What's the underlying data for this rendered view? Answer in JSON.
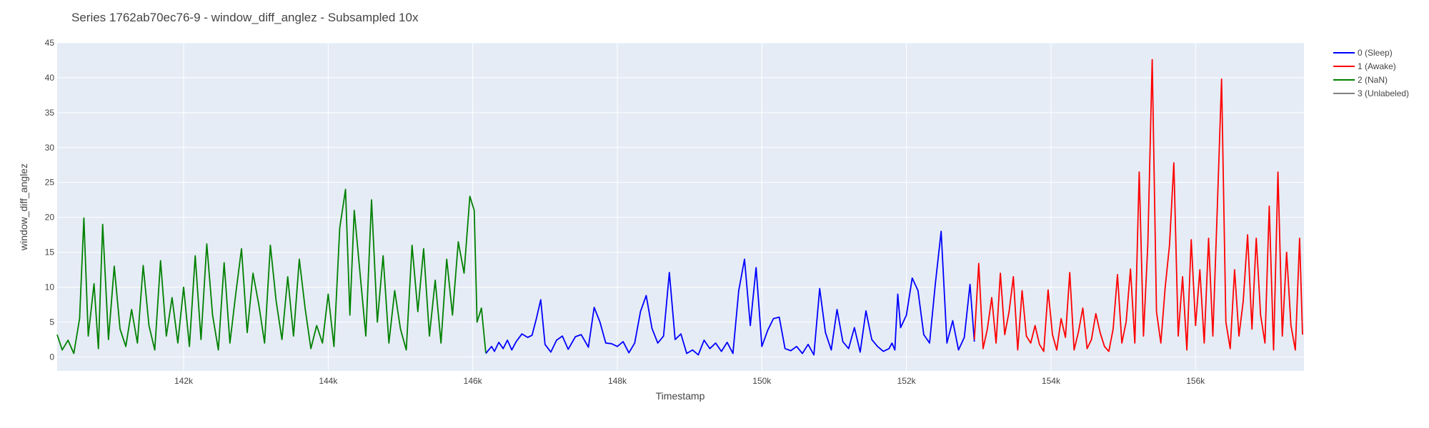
{
  "chart_data": {
    "type": "line",
    "title": "Series 1762ab70ec76-9 - window_diff_anglez - Subsampled 10x",
    "xlabel": "Timestamp",
    "ylabel": "window_diff_anglez",
    "xlim": [
      140250,
      157500
    ],
    "ylim": [
      -2,
      45
    ],
    "x_ticks": [
      142000,
      144000,
      146000,
      148000,
      150000,
      152000,
      154000,
      156000
    ],
    "x_tick_labels": [
      "142k",
      "144k",
      "146k",
      "148k",
      "150k",
      "152k",
      "154k",
      "156k"
    ],
    "y_ticks": [
      0,
      5,
      10,
      15,
      20,
      25,
      30,
      35,
      40,
      45
    ],
    "grid": true,
    "plot_background": "#e5ecf6",
    "legend_position": "top-right",
    "series": [
      {
        "name": "0 (Sleep)",
        "color": "#0000ff",
        "x": [
          146180,
          146260,
          146300,
          146360,
          146420,
          146480,
          146540,
          146600,
          146680,
          146760,
          146820,
          146880,
          146940,
          147000,
          147080,
          147160,
          147240,
          147320,
          147420,
          147500,
          147600,
          147680,
          147760,
          147840,
          147920,
          148000,
          148080,
          148160,
          148240,
          148320,
          148400,
          148480,
          148560,
          148640,
          148720,
          148800,
          148880,
          148960,
          149040,
          149120,
          149200,
          149280,
          149360,
          149440,
          149520,
          149600,
          149680,
          149760,
          149840,
          149920,
          150000,
          150080,
          150160,
          150240,
          150320,
          150400,
          150480,
          150560,
          150640,
          150720,
          150800,
          150880,
          150960,
          151040,
          151120,
          151200,
          151280,
          151360,
          151440,
          151520,
          151600,
          151680,
          151760,
          151800,
          151840,
          151880,
          151920,
          152000,
          152080,
          152160,
          152240,
          152320,
          152400,
          152480,
          152560,
          152640,
          152720,
          152800,
          152880,
          152940
        ],
        "values": [
          0.5,
          1.5,
          0.8,
          2.1,
          1.2,
          2.4,
          1.0,
          2.2,
          3.3,
          2.8,
          3.1,
          5.5,
          8.2,
          1.8,
          0.7,
          2.4,
          3.0,
          1.1,
          2.9,
          3.2,
          1.4,
          7.1,
          5.0,
          2.0,
          1.9,
          1.5,
          2.2,
          0.6,
          2.0,
          6.5,
          8.8,
          4.1,
          2.0,
          3.0,
          12.1,
          2.5,
          3.3,
          0.5,
          1.0,
          0.3,
          2.4,
          1.2,
          2.0,
          0.8,
          2.1,
          0.5,
          9.5,
          14.0,
          4.5,
          12.8,
          1.5,
          3.8,
          5.5,
          5.7,
          1.2,
          0.9,
          1.5,
          0.5,
          1.8,
          0.3,
          9.8,
          3.5,
          1.0,
          6.8,
          2.2,
          1.2,
          4.2,
          0.7,
          6.6,
          2.5,
          1.5,
          0.8,
          1.2,
          2.0,
          1.0,
          9.0,
          4.2,
          6.0,
          11.3,
          9.5,
          3.2,
          2.0,
          10.5,
          18.0,
          2.0,
          5.2,
          1.0,
          2.8,
          10.4,
          2.2
        ]
      },
      {
        "name": "1 (Awake)",
        "color": "#ff0000",
        "x": [
          152940,
          153000,
          153060,
          153120,
          153180,
          153240,
          153300,
          153360,
          153420,
          153480,
          153540,
          153600,
          153660,
          153720,
          153780,
          153840,
          153900,
          153960,
          154020,
          154080,
          154140,
          154200,
          154260,
          154320,
          154380,
          154440,
          154500,
          154560,
          154620,
          154680,
          154740,
          154800,
          154860,
          154920,
          154980,
          155040,
          155100,
          155160,
          155220,
          155280,
          155340,
          155400,
          155460,
          155520,
          155580,
          155640,
          155700,
          155760,
          155820,
          155880,
          155940,
          156000,
          156060,
          156120,
          156180,
          156240,
          156300,
          156360,
          156420,
          156480,
          156540,
          156600,
          156660,
          156720,
          156780,
          156840,
          156900,
          156960,
          157020,
          157080,
          157140,
          157200,
          157260,
          157320,
          157380,
          157440,
          157480
        ],
        "values": [
          2.5,
          13.4,
          1.2,
          4.0,
          8.5,
          2.0,
          12.0,
          3.2,
          6.5,
          11.5,
          1.0,
          9.5,
          3.0,
          2.0,
          4.5,
          1.8,
          0.8,
          9.6,
          3.2,
          1.0,
          5.5,
          2.8,
          12.1,
          1.0,
          3.6,
          7.0,
          1.2,
          2.5,
          6.2,
          3.5,
          1.5,
          0.8,
          4.0,
          11.8,
          2.0,
          5.0,
          12.6,
          2.0,
          26.5,
          3.0,
          16.2,
          42.6,
          6.5,
          2.0,
          10.0,
          16.0,
          27.8,
          3.0,
          11.5,
          1.0,
          16.8,
          4.5,
          12.5,
          2.0,
          17.0,
          3.0,
          21.0,
          39.8,
          5.0,
          1.2,
          12.5,
          3.0,
          8.0,
          17.5,
          4.0,
          17.0,
          6.0,
          2.0,
          21.6,
          1.0,
          26.5,
          3.0,
          15.0,
          4.5,
          1.0,
          17.0,
          3.2
        ]
      },
      {
        "name": "2 (NaN)",
        "color": "#008000",
        "x": [
          140250,
          140320,
          140400,
          140480,
          140560,
          140620,
          140680,
          140760,
          140820,
          140880,
          140960,
          141040,
          141120,
          141200,
          141280,
          141360,
          141440,
          141520,
          141600,
          141680,
          141760,
          141840,
          141920,
          142000,
          142080,
          142160,
          142240,
          142320,
          142400,
          142480,
          142560,
          142640,
          142720,
          142800,
          142880,
          142960,
          143040,
          143120,
          143200,
          143280,
          143360,
          143440,
          143520,
          143600,
          143680,
          143760,
          143840,
          143920,
          144000,
          144080,
          144160,
          144240,
          144300,
          144360,
          144440,
          144520,
          144600,
          144680,
          144760,
          144840,
          144920,
          145000,
          145080,
          145160,
          145240,
          145320,
          145400,
          145480,
          145560,
          145640,
          145720,
          145800,
          145880,
          145960,
          146020,
          146060,
          146120,
          146180
        ],
        "values": [
          3.2,
          1.0,
          2.4,
          0.5,
          5.5,
          19.9,
          3.0,
          10.5,
          1.2,
          19.0,
          2.5,
          13.0,
          4.0,
          1.5,
          6.8,
          2.0,
          13.1,
          4.5,
          1.0,
          13.8,
          3.0,
          8.5,
          2.0,
          10.0,
          1.5,
          14.5,
          2.5,
          16.2,
          6.0,
          1.0,
          13.5,
          2.0,
          9.0,
          15.5,
          3.5,
          12.0,
          7.5,
          2.0,
          16.0,
          8.0,
          2.5,
          11.5,
          3.0,
          14.0,
          7.0,
          1.2,
          4.5,
          2.0,
          9.0,
          1.5,
          18.5,
          24.0,
          6.0,
          21.0,
          12.0,
          3.0,
          22.5,
          5.0,
          14.5,
          2.0,
          9.5,
          4.0,
          1.0,
          16.0,
          6.5,
          15.5,
          3.0,
          11.0,
          2.0,
          14.0,
          6.0,
          16.5,
          12.0,
          23.0,
          21.0,
          5.0,
          7.0,
          0.6
        ]
      },
      {
        "name": "3 (Unlabeled)",
        "color": "#808080",
        "x": [],
        "values": []
      }
    ]
  }
}
